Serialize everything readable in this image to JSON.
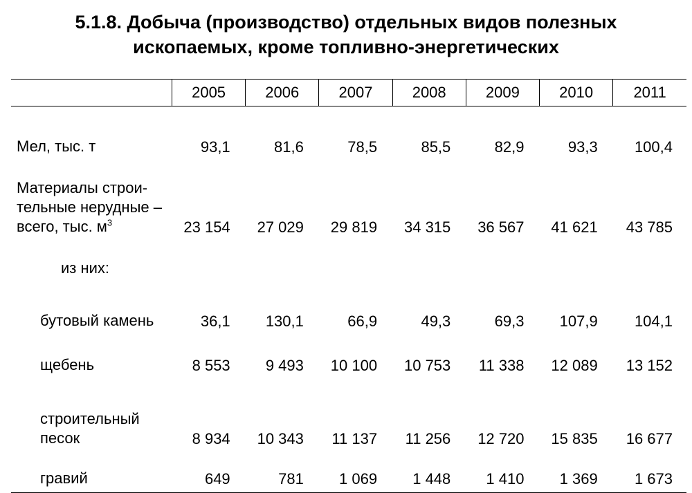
{
  "title": {
    "line1": "5.1.8. Добыча (производство) отдельных видов полезных",
    "line2": "ископаемых, кроме топливно-энергетических"
  },
  "table": {
    "years": [
      "2005",
      "2006",
      "2007",
      "2008",
      "2009",
      "2010",
      "2011"
    ],
    "rows": {
      "mel": {
        "label": "Мел, тыс. т",
        "values": [
          "93,1",
          "81,6",
          "78,5",
          "85,5",
          "82,9",
          "93,3",
          "100,4"
        ]
      },
      "materialy": {
        "label_line1": "Материалы строи-",
        "label_line2": "тельные нерудные –",
        "label_line3": "всего, тыс. м",
        "label_sup": "3",
        "values": [
          "23 154",
          "27 029",
          "29 819",
          "34 315",
          "36 567",
          "41 621",
          "43 785"
        ]
      },
      "iz_nikh": {
        "label": "из них:"
      },
      "butovy": {
        "label": "бутовый камень",
        "values": [
          "36,1",
          "130,1",
          "66,9",
          "49,3",
          "69,3",
          "107,9",
          "104,1"
        ]
      },
      "shcheben": {
        "label": "щебень",
        "values": [
          "8 553",
          "9 493",
          "10 100",
          "10 753",
          "11 338",
          "12 089",
          "13 152"
        ]
      },
      "pesok": {
        "label_line1": "строительный",
        "label_line2": "песок",
        "values": [
          "8 934",
          "10 343",
          "11 137",
          "11 256",
          "12 720",
          "15 835",
          "16 677"
        ]
      },
      "gravy": {
        "label": "гравий",
        "values": [
          "649",
          "781",
          "1 069",
          "1 448",
          "1 410",
          "1 369",
          "1 673"
        ]
      }
    }
  }
}
